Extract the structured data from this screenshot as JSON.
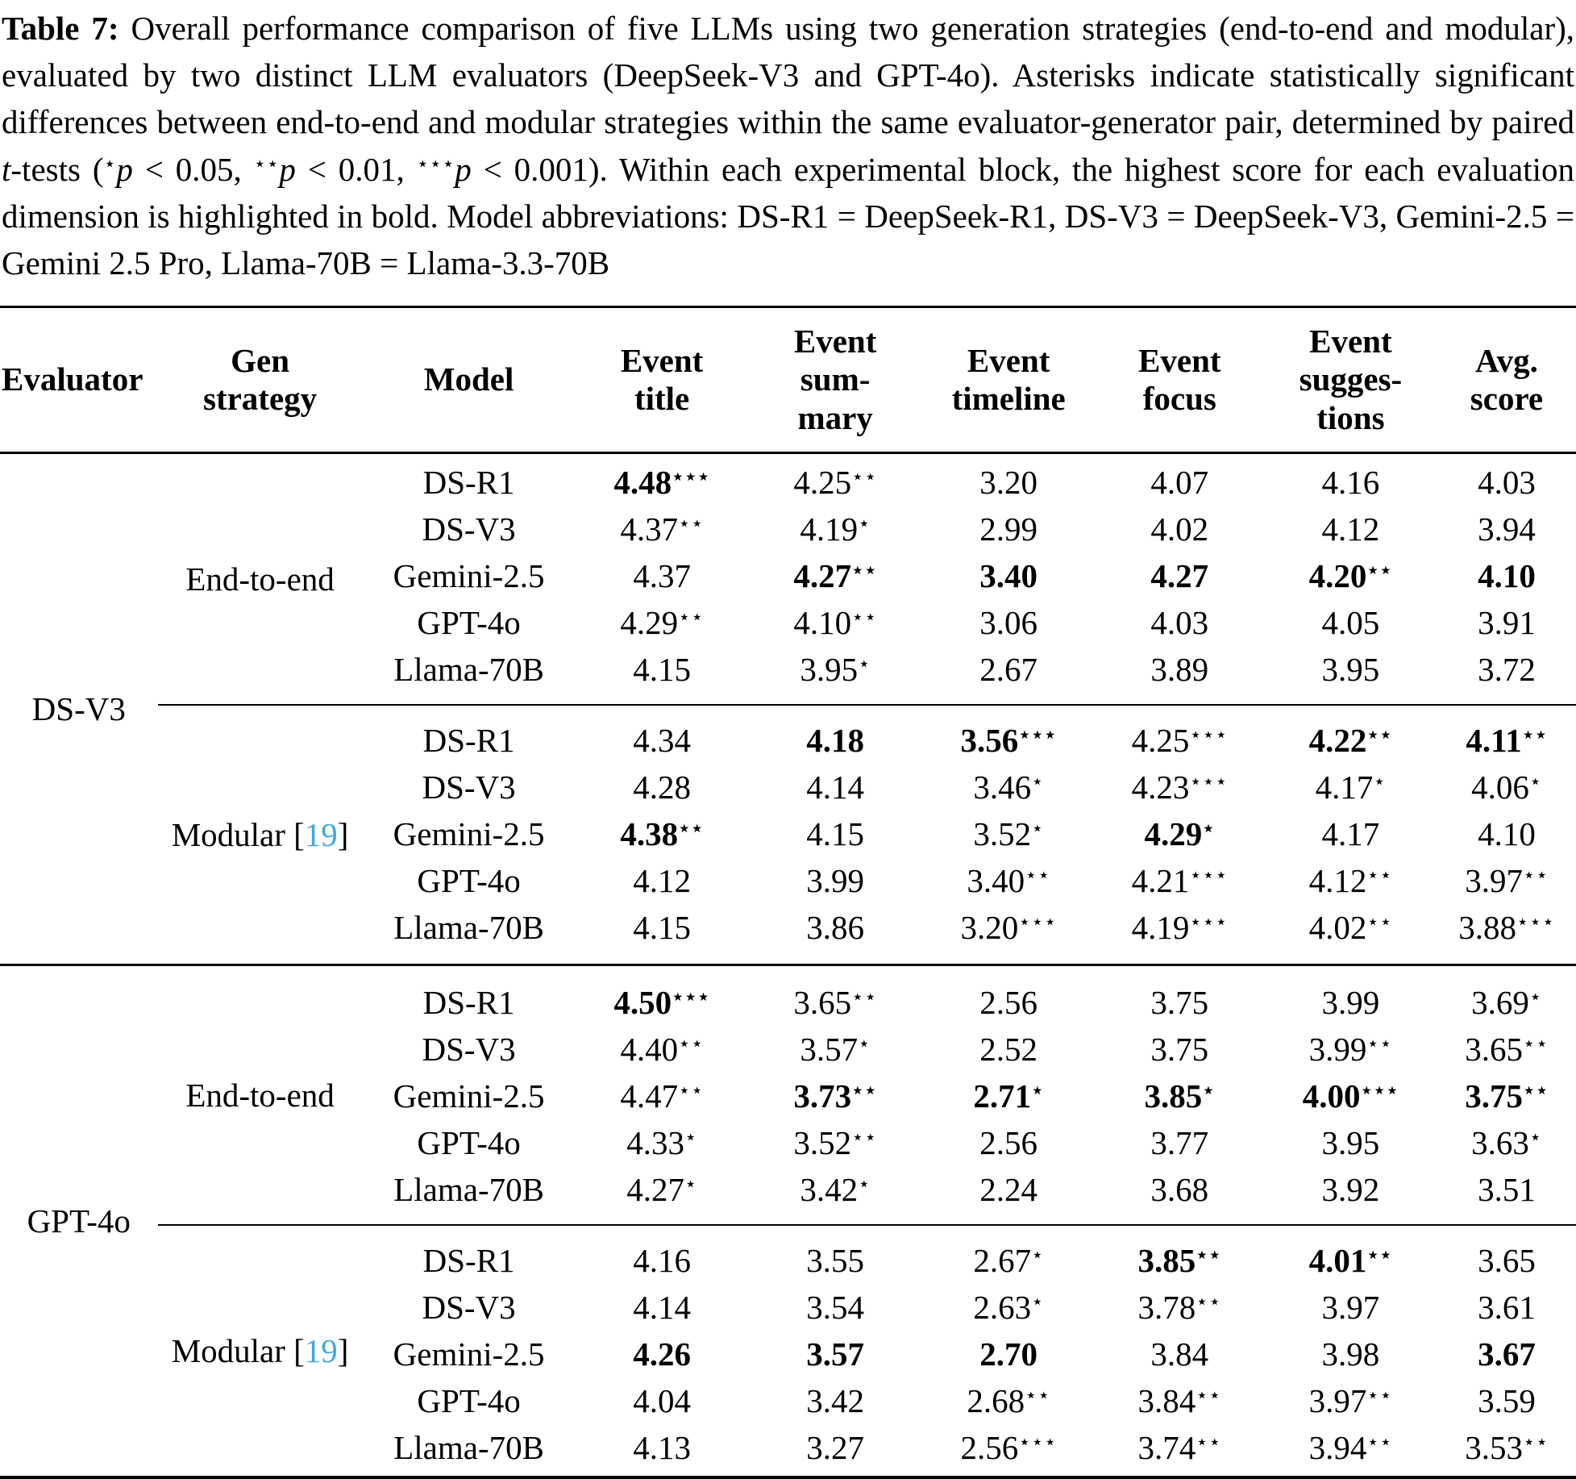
{
  "colors": {
    "citation_link": "#3fa9dc",
    "text": "#000000",
    "background": "#ffffff"
  },
  "caption": {
    "segments": [
      {
        "t": "Table 7:",
        "s": "b"
      },
      {
        "t": " Overall performance comparison of five LLMs using two generation strategies (end-to-end and modular), evaluated by two distinct LLM evaluators (DeepSeek-V3 and GPT-4o). Asterisks indicate statistically significant differences between end-to-end and modular strategies within the same evaluator-generator pair, determined by paired ",
        "s": ""
      },
      {
        "t": "t",
        "s": "i"
      },
      {
        "t": "-tests (",
        "s": ""
      },
      {
        "t": "⋆",
        "s": "sup"
      },
      {
        "t": "p",
        "s": "i"
      },
      {
        "t": " < 0.05, ",
        "s": ""
      },
      {
        "t": "⋆⋆",
        "s": "sup"
      },
      {
        "t": "p",
        "s": "i"
      },
      {
        "t": " < 0.01, ",
        "s": ""
      },
      {
        "t": "⋆⋆⋆",
        "s": "sup"
      },
      {
        "t": "p",
        "s": "i"
      },
      {
        "t": " < 0.001). Within each experimental block, the highest score for each evaluation dimension is highlighted in bold. Model abbreviations: DS-R1 = DeepSeek-R1, DS-V3 = DeepSeek-V3, Gemini-2.5 = Gemini 2.5 Pro, Llama-70B = Llama-3.3-70B",
        "s": ""
      }
    ]
  },
  "table": {
    "star_char": "⋆",
    "headers": [
      "Evaluator",
      "Gen\nstrategy",
      "Model",
      "Event\ntitle",
      "Event\nsum-\nmary",
      "Event\ntimeline",
      "Event\nfocus",
      "Event\nsugges-\ntions",
      "Avg.\nscore"
    ],
    "blocks": [
      {
        "evaluator": "DS-V3",
        "groups": [
          {
            "strategy": "End-to-end",
            "cite": "",
            "rows": [
              {
                "model": "DS-R1",
                "cells": [
                  {
                    "v": "4.48",
                    "st": 3,
                    "b": true
                  },
                  {
                    "v": "4.25",
                    "st": 2
                  },
                  {
                    "v": "3.20"
                  },
                  {
                    "v": "4.07"
                  },
                  {
                    "v": "4.16"
                  },
                  {
                    "v": "4.03"
                  }
                ]
              },
              {
                "model": "DS-V3",
                "cells": [
                  {
                    "v": "4.37",
                    "st": 2
                  },
                  {
                    "v": "4.19",
                    "st": 1
                  },
                  {
                    "v": "2.99"
                  },
                  {
                    "v": "4.02"
                  },
                  {
                    "v": "4.12"
                  },
                  {
                    "v": "3.94"
                  }
                ]
              },
              {
                "model": "Gemini-2.5",
                "cells": [
                  {
                    "v": "4.37"
                  },
                  {
                    "v": "4.27",
                    "st": 2,
                    "b": true
                  },
                  {
                    "v": "3.40",
                    "b": true
                  },
                  {
                    "v": "4.27",
                    "b": true
                  },
                  {
                    "v": "4.20",
                    "st": 2,
                    "b": true
                  },
                  {
                    "v": "4.10",
                    "b": true
                  }
                ]
              },
              {
                "model": "GPT-4o",
                "cells": [
                  {
                    "v": "4.29",
                    "st": 2
                  },
                  {
                    "v": "4.10",
                    "st": 2
                  },
                  {
                    "v": "3.06"
                  },
                  {
                    "v": "4.03"
                  },
                  {
                    "v": "4.05"
                  },
                  {
                    "v": "3.91"
                  }
                ]
              },
              {
                "model": "Llama-70B",
                "cells": [
                  {
                    "v": "4.15"
                  },
                  {
                    "v": "3.95",
                    "st": 1
                  },
                  {
                    "v": "2.67"
                  },
                  {
                    "v": "3.89"
                  },
                  {
                    "v": "3.95"
                  },
                  {
                    "v": "3.72"
                  }
                ]
              }
            ]
          },
          {
            "strategy": "Modular",
            "cite": "19",
            "rows": [
              {
                "model": "DS-R1",
                "cells": [
                  {
                    "v": "4.34"
                  },
                  {
                    "v": "4.18",
                    "b": true
                  },
                  {
                    "v": "3.56",
                    "st": 3,
                    "b": true
                  },
                  {
                    "v": "4.25",
                    "st": 3
                  },
                  {
                    "v": "4.22",
                    "st": 2,
                    "b": true
                  },
                  {
                    "v": "4.11",
                    "st": 2,
                    "b": true
                  }
                ]
              },
              {
                "model": "DS-V3",
                "cells": [
                  {
                    "v": "4.28"
                  },
                  {
                    "v": "4.14"
                  },
                  {
                    "v": "3.46",
                    "st": 1
                  },
                  {
                    "v": "4.23",
                    "st": 3
                  },
                  {
                    "v": "4.17",
                    "st": 1
                  },
                  {
                    "v": "4.06",
                    "st": 1
                  }
                ]
              },
              {
                "model": "Gemini-2.5",
                "cells": [
                  {
                    "v": "4.38",
                    "st": 2,
                    "b": true
                  },
                  {
                    "v": "4.15"
                  },
                  {
                    "v": "3.52",
                    "st": 1
                  },
                  {
                    "v": "4.29",
                    "st": 1,
                    "b": true
                  },
                  {
                    "v": "4.17"
                  },
                  {
                    "v": "4.10"
                  }
                ]
              },
              {
                "model": "GPT-4o",
                "cells": [
                  {
                    "v": "4.12"
                  },
                  {
                    "v": "3.99"
                  },
                  {
                    "v": "3.40",
                    "st": 2
                  },
                  {
                    "v": "4.21",
                    "st": 3
                  },
                  {
                    "v": "4.12",
                    "st": 2
                  },
                  {
                    "v": "3.97",
                    "st": 2
                  }
                ]
              },
              {
                "model": "Llama-70B",
                "cells": [
                  {
                    "v": "4.15"
                  },
                  {
                    "v": "3.86"
                  },
                  {
                    "v": "3.20",
                    "st": 3
                  },
                  {
                    "v": "4.19",
                    "st": 3
                  },
                  {
                    "v": "4.02",
                    "st": 2
                  },
                  {
                    "v": "3.88",
                    "st": 3
                  }
                ]
              }
            ]
          }
        ]
      },
      {
        "evaluator": "GPT-4o",
        "groups": [
          {
            "strategy": "End-to-end",
            "cite": "",
            "rows": [
              {
                "model": "DS-R1",
                "cells": [
                  {
                    "v": "4.50",
                    "st": 3,
                    "b": true
                  },
                  {
                    "v": "3.65",
                    "st": 2
                  },
                  {
                    "v": "2.56"
                  },
                  {
                    "v": "3.75"
                  },
                  {
                    "v": "3.99"
                  },
                  {
                    "v": "3.69",
                    "st": 1
                  }
                ]
              },
              {
                "model": "DS-V3",
                "cells": [
                  {
                    "v": "4.40",
                    "st": 2
                  },
                  {
                    "v": "3.57",
                    "st": 1
                  },
                  {
                    "v": "2.52"
                  },
                  {
                    "v": "3.75"
                  },
                  {
                    "v": "3.99",
                    "st": 2
                  },
                  {
                    "v": "3.65",
                    "st": 2
                  }
                ]
              },
              {
                "model": "Gemini-2.5",
                "cells": [
                  {
                    "v": "4.47",
                    "st": 2
                  },
                  {
                    "v": "3.73",
                    "st": 2,
                    "b": true
                  },
                  {
                    "v": "2.71",
                    "st": 1,
                    "b": true
                  },
                  {
                    "v": "3.85",
                    "st": 1,
                    "b": true
                  },
                  {
                    "v": "4.00",
                    "st": 3,
                    "b": true
                  },
                  {
                    "v": "3.75",
                    "st": 2,
                    "b": true
                  }
                ]
              },
              {
                "model": "GPT-4o",
                "cells": [
                  {
                    "v": "4.33",
                    "st": 1
                  },
                  {
                    "v": "3.52",
                    "st": 2
                  },
                  {
                    "v": "2.56"
                  },
                  {
                    "v": "3.77"
                  },
                  {
                    "v": "3.95"
                  },
                  {
                    "v": "3.63",
                    "st": 1
                  }
                ]
              },
              {
                "model": "Llama-70B",
                "cells": [
                  {
                    "v": "4.27",
                    "st": 1
                  },
                  {
                    "v": "3.42",
                    "st": 1
                  },
                  {
                    "v": "2.24"
                  },
                  {
                    "v": "3.68"
                  },
                  {
                    "v": "3.92"
                  },
                  {
                    "v": "3.51"
                  }
                ]
              }
            ]
          },
          {
            "strategy": "Modular",
            "cite": "19",
            "rows": [
              {
                "model": "DS-R1",
                "cells": [
                  {
                    "v": "4.16"
                  },
                  {
                    "v": "3.55"
                  },
                  {
                    "v": "2.67",
                    "st": 1
                  },
                  {
                    "v": "3.85",
                    "st": 2,
                    "b": true
                  },
                  {
                    "v": "4.01",
                    "st": 2,
                    "b": true
                  },
                  {
                    "v": "3.65"
                  }
                ]
              },
              {
                "model": "DS-V3",
                "cells": [
                  {
                    "v": "4.14"
                  },
                  {
                    "v": "3.54"
                  },
                  {
                    "v": "2.63",
                    "st": 1
                  },
                  {
                    "v": "3.78",
                    "st": 2
                  },
                  {
                    "v": "3.97"
                  },
                  {
                    "v": "3.61"
                  }
                ]
              },
              {
                "model": "Gemini-2.5",
                "cells": [
                  {
                    "v": "4.26",
                    "b": true
                  },
                  {
                    "v": "3.57",
                    "b": true
                  },
                  {
                    "v": "2.70",
                    "b": true
                  },
                  {
                    "v": "3.84"
                  },
                  {
                    "v": "3.98"
                  },
                  {
                    "v": "3.67",
                    "b": true
                  }
                ]
              },
              {
                "model": "GPT-4o",
                "cells": [
                  {
                    "v": "4.04"
                  },
                  {
                    "v": "3.42"
                  },
                  {
                    "v": "2.68",
                    "st": 2
                  },
                  {
                    "v": "3.84",
                    "st": 2
                  },
                  {
                    "v": "3.97",
                    "st": 2
                  },
                  {
                    "v": "3.59"
                  }
                ]
              },
              {
                "model": "Llama-70B",
                "cells": [
                  {
                    "v": "4.13"
                  },
                  {
                    "v": "3.27"
                  },
                  {
                    "v": "2.56",
                    "st": 3
                  },
                  {
                    "v": "3.74",
                    "st": 2
                  },
                  {
                    "v": "3.94",
                    "st": 2
                  },
                  {
                    "v": "3.53",
                    "st": 2
                  }
                ]
              }
            ]
          }
        ]
      }
    ]
  }
}
